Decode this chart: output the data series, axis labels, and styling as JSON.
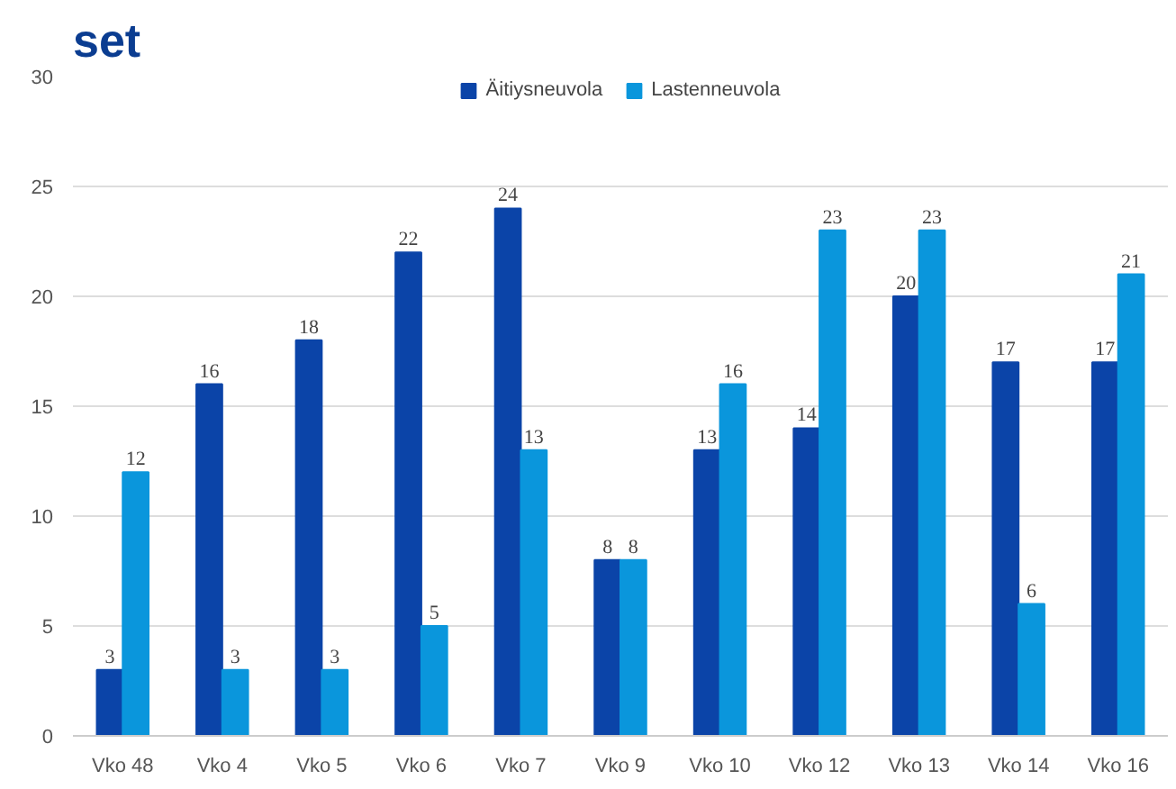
{
  "chart_data": {
    "type": "bar",
    "title": "set",
    "categories": [
      "Vko 48",
      "Vko 4",
      "Vko 5",
      "Vko 6",
      "Vko 7",
      "Vko 9",
      "Vko 10",
      "Vko 12",
      "Vko 13",
      "Vko 14",
      "Vko 16"
    ],
    "series": [
      {
        "name": "Äitiysneuvola",
        "color": "#0b44a8",
        "values": [
          3,
          16,
          18,
          22,
          24,
          8,
          13,
          14,
          20,
          17,
          17
        ]
      },
      {
        "name": "Lastenneuvola",
        "color": "#0a96dc",
        "values": [
          12,
          3,
          3,
          5,
          13,
          8,
          16,
          23,
          23,
          6,
          21
        ]
      }
    ],
    "ylim": [
      0,
      30
    ],
    "yticks": [
      0,
      5,
      10,
      15,
      20,
      25,
      30
    ],
    "grid": "y",
    "legend": "top",
    "data_labels": true
  }
}
